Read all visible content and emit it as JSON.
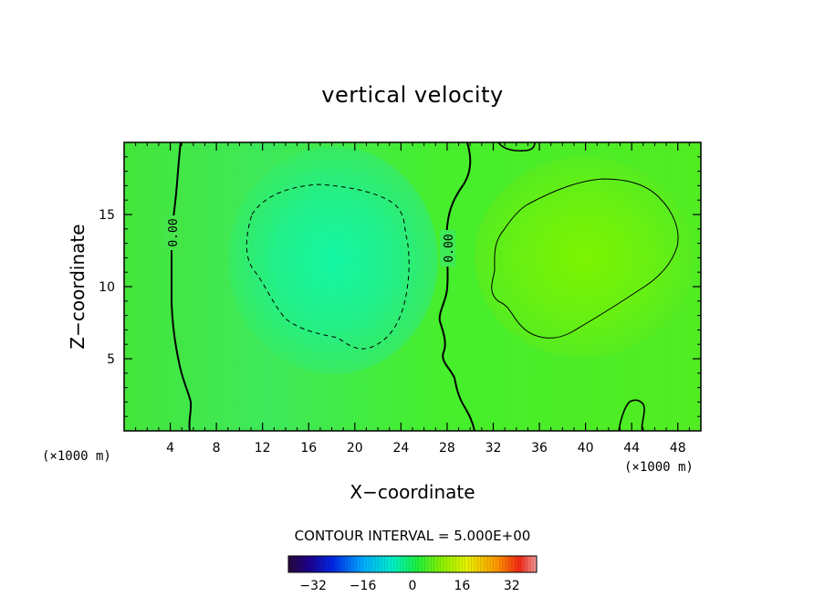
{
  "chart_data": {
    "type": "contour",
    "title": "vertical velocity",
    "xlabel": "X−coordinate",
    "ylabel": "Z−coordinate",
    "x_unit": "(×1000 m)",
    "z_unit": "(×1000 m)",
    "xlim": [
      0,
      50
    ],
    "ylim": [
      0,
      20
    ],
    "x_ticks": [
      4,
      8,
      12,
      16,
      20,
      24,
      28,
      32,
      36,
      40,
      44,
      48
    ],
    "y_ticks": [
      5,
      10,
      15
    ],
    "contour_interval_text": "CONTOUR INTERVAL = 5.000E+00",
    "contour_labels": [
      "0.00",
      "0.00"
    ],
    "colorbar": {
      "range": [
        -40,
        40
      ],
      "ticks": [
        -32,
        -16,
        0,
        16,
        32
      ],
      "tick_labels": [
        "−32",
        "−16",
        "0",
        "16",
        "32"
      ]
    },
    "features": [
      {
        "kind": "downdraft",
        "center_x": 19,
        "center_z": 12,
        "contour_value": -5
      },
      {
        "kind": "updraft",
        "center_x": 39,
        "center_z": 12,
        "contour_value": 5
      }
    ]
  }
}
